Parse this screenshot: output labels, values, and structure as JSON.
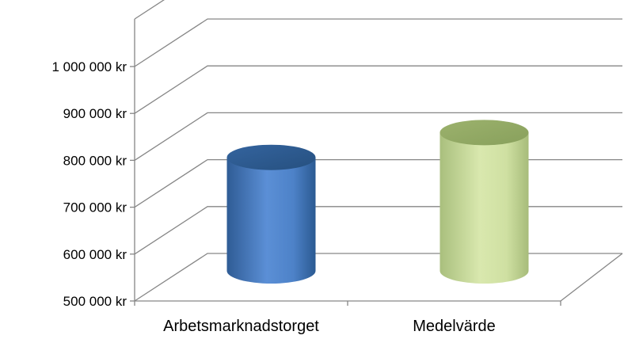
{
  "chart_data": {
    "type": "bar",
    "style": "3d-cylinder",
    "categories": [
      "Arbetsmarknadstorget",
      "Medelvärde"
    ],
    "values": [
      742000,
      795000
    ],
    "colors": [
      "#4F81BD",
      "#C3D69B"
    ],
    "ylim": [
      500000,
      1000000
    ],
    "yticks": [
      "500 000 kr",
      "600 000 kr",
      "700 000 kr",
      "800 000 kr",
      "900 000 kr",
      "1 000 000 kr"
    ],
    "grid": true,
    "legend": "none"
  }
}
